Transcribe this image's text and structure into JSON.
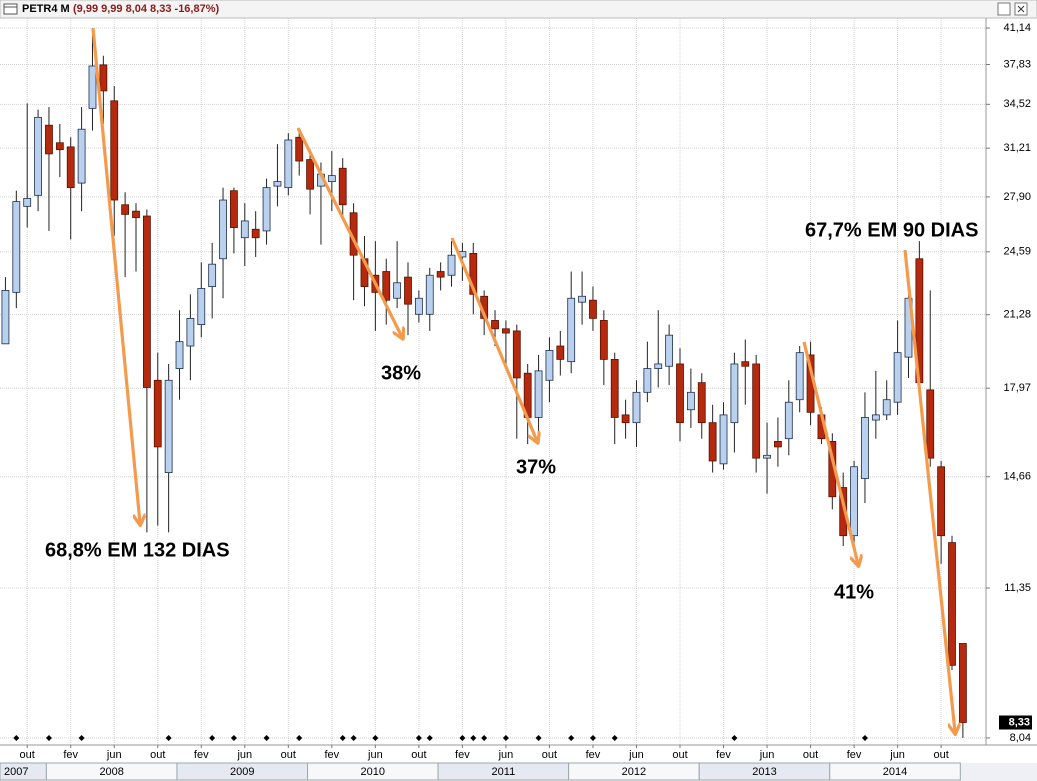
{
  "chart_data": {
    "type": "candlestick",
    "title": "PETR4 M",
    "quote": "(9,99  9,99  8,04  8,33  -16,87%)",
    "scale": "log",
    "grid": true,
    "up_color": "#b9d1ee",
    "down_color": "#b5290e",
    "categories": [
      null,
      null,
      "out",
      null,
      null,
      null,
      "fev",
      null,
      null,
      null,
      "jun",
      null,
      null,
      null,
      "out",
      null,
      null,
      null,
      "fev",
      null,
      null,
      null,
      "jun",
      null,
      null,
      null,
      "out",
      null,
      null,
      null,
      "fev",
      null,
      null,
      null,
      "jun",
      null,
      null,
      null,
      "out",
      null,
      null,
      null,
      "fev",
      null,
      null,
      null,
      "jun",
      null,
      null,
      null,
      "out",
      null,
      null,
      null,
      "fev",
      null,
      null,
      null,
      "jun",
      null,
      null,
      null,
      "out",
      null,
      null,
      null,
      "fev",
      null,
      null,
      null,
      "jun",
      null,
      null,
      null,
      "out",
      null,
      null,
      null,
      "fev",
      null,
      null,
      null,
      "jun",
      null,
      null,
      null,
      "out",
      null,
      null
    ],
    "years": [
      "2007",
      "2008",
      "2009",
      "2010",
      "2011",
      "2012",
      "2013",
      "2014"
    ],
    "open": [
      19.9,
      22.4,
      27.3,
      28.0,
      32.9,
      31.6,
      31.3,
      28.8,
      34.2,
      37.8,
      34.8,
      27.4,
      27.0,
      26.7,
      18.3,
      14.8,
      18.8,
      19.8,
      20.8,
      22.7,
      24.2,
      28.3,
      25.4,
      25.9,
      25.8,
      28.6,
      28.5,
      32.0,
      30.4,
      28.6,
      28.9,
      29.8,
      26.9,
      24.2,
      23.3,
      23.5,
      22.1,
      23.2,
      21.3,
      21.3,
      23.5,
      23.3,
      24.3,
      24.5,
      22.2,
      21.0,
      20.6,
      20.5,
      18.6,
      16.8,
      18.3,
      19.8,
      19.1,
      21.9,
      22.0,
      21.0,
      19.2,
      16.9,
      16.6,
      17.8,
      18.8,
      18.9,
      19.0,
      17.1,
      18.2,
      16.6,
      15.1,
      16.6,
      19.1,
      19.0,
      15.3,
      15.9,
      16.0,
      17.5,
      19.4,
      16.9,
      15.9,
      14.3,
      12.8,
      14.6,
      16.7,
      16.9,
      17.4,
      19.3,
      24.2,
      17.9,
      15.0,
      12.6,
      9.99
    ],
    "high": [
      23.2,
      28.3,
      34.6,
      34.1,
      34.3,
      33.0,
      32.0,
      34.3,
      41.1,
      38.6,
      36.0,
      28.2,
      27.5,
      27.1,
      19.5,
      19.0,
      21.5,
      22.3,
      24.0,
      25.1,
      28.5,
      28.5,
      27.5,
      27.0,
      29.1,
      31.5,
      32.3,
      32.5,
      30.8,
      30.2,
      31.0,
      30.5,
      27.5,
      25.5,
      25.2,
      24.2,
      25.2,
      24.0,
      22.5,
      23.7,
      24.0,
      25.2,
      25.1,
      25.1,
      22.5,
      21.5,
      21.0,
      20.8,
      19.0,
      19.4,
      20.2,
      20.5,
      23.5,
      23.5,
      22.7,
      21.5,
      19.5,
      17.5,
      18.3,
      20.0,
      21.5,
      20.8,
      19.7,
      18.8,
      18.6,
      17.3,
      17.4,
      19.5,
      20.1,
      19.4,
      16.6,
      16.8,
      18.3,
      19.8,
      20.0,
      17.2,
      16.2,
      14.8,
      15.2,
      17.8,
      18.7,
      18.3,
      21.0,
      22.7,
      25.2,
      22.5,
      15.2,
      12.8,
      9.99
    ],
    "low": [
      19.9,
      21.6,
      26.0,
      27.0,
      25.8,
      29.2,
      25.3,
      27.0,
      32.5,
      33.0,
      25.5,
      23.2,
      23.5,
      12.9,
      13.1,
      12.9,
      17.5,
      18.3,
      20.2,
      21.1,
      22.1,
      24.5,
      23.8,
      24.3,
      25.0,
      27.3,
      28.0,
      29.3,
      26.8,
      25.0,
      27.0,
      26.5,
      22.0,
      21.7,
      20.5,
      20.8,
      21.6,
      20.3,
      20.9,
      20.5,
      22.5,
      22.7,
      23.0,
      21.3,
      20.3,
      19.8,
      19.0,
      16.0,
      15.8,
      16.0,
      17.4,
      18.5,
      18.6,
      20.8,
      20.5,
      18.1,
      15.8,
      16.0,
      15.7,
      17.4,
      18.0,
      18.1,
      15.9,
      16.4,
      16.0,
      14.8,
      14.9,
      15.5,
      17.3,
      14.8,
      14.1,
      15.0,
      15.4,
      17.0,
      16.5,
      15.8,
      13.6,
      12.5,
      12.4,
      13.8,
      16.0,
      16.7,
      16.9,
      18.4,
      17.8,
      15.0,
      12.0,
      9.4,
      8.04
    ],
    "close": [
      22.5,
      27.6,
      27.8,
      33.5,
      30.8,
      31.1,
      28.5,
      32.6,
      37.7,
      35.6,
      27.7,
      26.8,
      26.6,
      18.0,
      15.7,
      18.3,
      20.0,
      21.1,
      22.6,
      23.9,
      27.7,
      26.0,
      26.4,
      25.4,
      28.5,
      28.9,
      31.8,
      30.3,
      28.4,
      29.4,
      29.3,
      27.4,
      24.4,
      22.7,
      22.4,
      22.0,
      22.9,
      21.8,
      22.1,
      23.3,
      23.2,
      24.4,
      24.6,
      22.3,
      21.1,
      20.6,
      20.4,
      18.4,
      16.8,
      18.7,
      19.6,
      19.2,
      22.1,
      22.2,
      21.1,
      19.2,
      16.8,
      16.6,
      17.8,
      18.8,
      19.0,
      20.3,
      16.6,
      17.8,
      16.6,
      15.2,
      16.9,
      19.0,
      18.9,
      15.3,
      15.4,
      15.7,
      17.4,
      19.5,
      17.0,
      16.0,
      14.0,
      12.8,
      15.0,
      16.8,
      16.9,
      17.5,
      19.5,
      22.1,
      18.2,
      15.3,
      12.8,
      9.5,
      8.33
    ],
    "events": [
      1,
      4,
      7,
      15,
      19,
      21,
      24,
      27,
      31,
      32,
      34,
      38,
      39,
      42,
      43,
      44,
      46,
      49,
      52,
      54,
      56,
      67,
      79
    ],
    "last_price": {
      "value": 8.33,
      "label": "8,33"
    },
    "ylim": [
      7.91,
      42.1
    ],
    "yticks": [
      {
        "value": 41.14,
        "label": "41,14"
      },
      {
        "value": 37.83,
        "label": "37,83"
      },
      {
        "value": 34.52,
        "label": "34,52"
      },
      {
        "value": 31.21,
        "label": "31,21"
      },
      {
        "value": 27.9,
        "label": "27,90"
      },
      {
        "value": 24.59,
        "label": "24,59"
      },
      {
        "value": 21.28,
        "label": "21,28"
      },
      {
        "value": 17.97,
        "label": "17,97"
      },
      {
        "value": 14.66,
        "label": "14,66"
      },
      {
        "value": 11.35,
        "label": "11,35"
      },
      {
        "value": 8.04,
        "label": "8,04"
      }
    ],
    "annotations": [
      "68,8% EM 132 DIAS",
      "38%",
      "37%",
      "41%",
      "67,7% EM 90 DIAS"
    ]
  }
}
